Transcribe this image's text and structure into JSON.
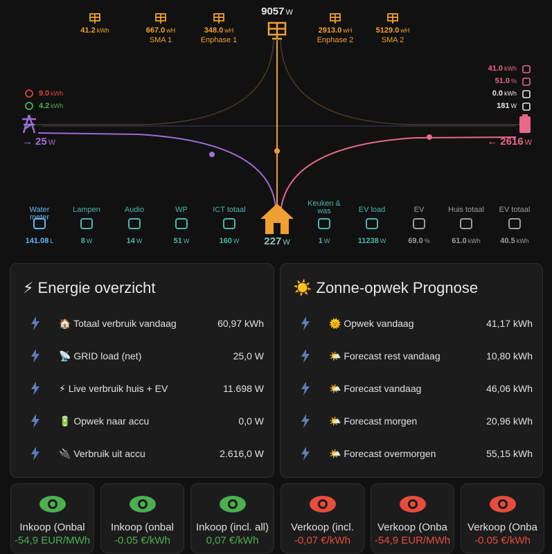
{
  "power_flow": {
    "solar": {
      "value": "9057",
      "unit": "W"
    },
    "solar_sources": [
      {
        "value": "41.2",
        "unit": "kWh"
      },
      {
        "value": "667.0",
        "unit": "wH",
        "label": "SMA 1"
      },
      {
        "value": "348.0",
        "unit": "wH",
        "label": "Enphase 1"
      },
      {
        "value": "2913.0",
        "unit": "wH",
        "label": "Enphase 2"
      },
      {
        "value": "5129.0",
        "unit": "wH",
        "label": "SMA 2"
      }
    ],
    "grid": {
      "consumed": {
        "value": "9.0",
        "unit": "kWh"
      },
      "returned": {
        "value": "4.2",
        "unit": "kWh"
      },
      "flow": {
        "arrow": "→",
        "value": "25",
        "unit": "W"
      }
    },
    "battery": {
      "stats": [
        {
          "value": "41.0",
          "unit": "kWh"
        },
        {
          "value": "51.0",
          "unit": "%"
        },
        {
          "value": "0.0",
          "unit": "kWh"
        },
        {
          "value": "181",
          "unit": "W"
        }
      ],
      "flow": {
        "arrow": "←",
        "value": "2616",
        "unit": "W"
      }
    },
    "home": {
      "value": "227",
      "unit": "W"
    },
    "devices": [
      {
        "name": "Water meter",
        "value": "141.08",
        "unit": "L"
      },
      {
        "name": "Lampen",
        "value": "8",
        "unit": "W"
      },
      {
        "name": "Audio",
        "value": "14",
        "unit": "W"
      },
      {
        "name": "WP",
        "value": "51",
        "unit": "W"
      },
      {
        "name": "ICT totaal",
        "value": "160",
        "unit": "W"
      },
      {
        "name": "Keuken & was",
        "value": "1",
        "unit": "W"
      },
      {
        "name": "EV load",
        "value": "11238",
        "unit": "W"
      },
      {
        "name": "EV",
        "value": "69.0",
        "unit": "%"
      },
      {
        "name": "Huis totaal",
        "value": "61.0",
        "unit": "kWh"
      },
      {
        "name": "EV totaal",
        "value": "40.5",
        "unit": "kWh"
      }
    ]
  },
  "cards": [
    {
      "title": "⚡ Energie overzicht",
      "rows": [
        {
          "label": "🏠 Totaal verbruik vandaag",
          "value": "60,97 kWh"
        },
        {
          "label": "📡 GRID load (net)",
          "value": "25,0 W"
        },
        {
          "label": "⚡ Live verbruik huis + EV",
          "value": "11.698 W"
        },
        {
          "label": "🔋 Opwek naar accu",
          "value": "0,0 W"
        },
        {
          "label": "🔌 Verbruik uit accu",
          "value": "2.616,0 W"
        }
      ]
    },
    {
      "title": "☀️ Zonne-opwek Prognose",
      "rows": [
        {
          "label": "🌞 Opwek vandaag",
          "value": "41,17 kWh"
        },
        {
          "label": "🌤️ Forecast rest vandaag",
          "value": "10,80 kWh"
        },
        {
          "label": "🌤️ Forecast vandaag",
          "value": "46,06 kWh"
        },
        {
          "label": "🌤️ Forecast morgen",
          "value": "20,96 kWh"
        },
        {
          "label": "🌤️ Forecast overmorgen",
          "value": "55,15 kWh"
        }
      ]
    }
  ],
  "buttons": [
    {
      "name": "Inkoop (Onbal",
      "value": "-54,9 EUR/MWh"
    },
    {
      "name": "Inkoop (onbal",
      "value": "-0.05 €/kWh"
    },
    {
      "name": "Inkoop (incl. all)",
      "value": "0,07 €/kWh"
    },
    {
      "name": "Verkoop (incl.",
      "value": "-0,07 €/kWh"
    },
    {
      "name": "Verkoop (Onba",
      "value": "-54,9 EUR/MWh"
    },
    {
      "name": "Verkoop (Onba",
      "value": "-0.05 €/kWh"
    }
  ]
}
